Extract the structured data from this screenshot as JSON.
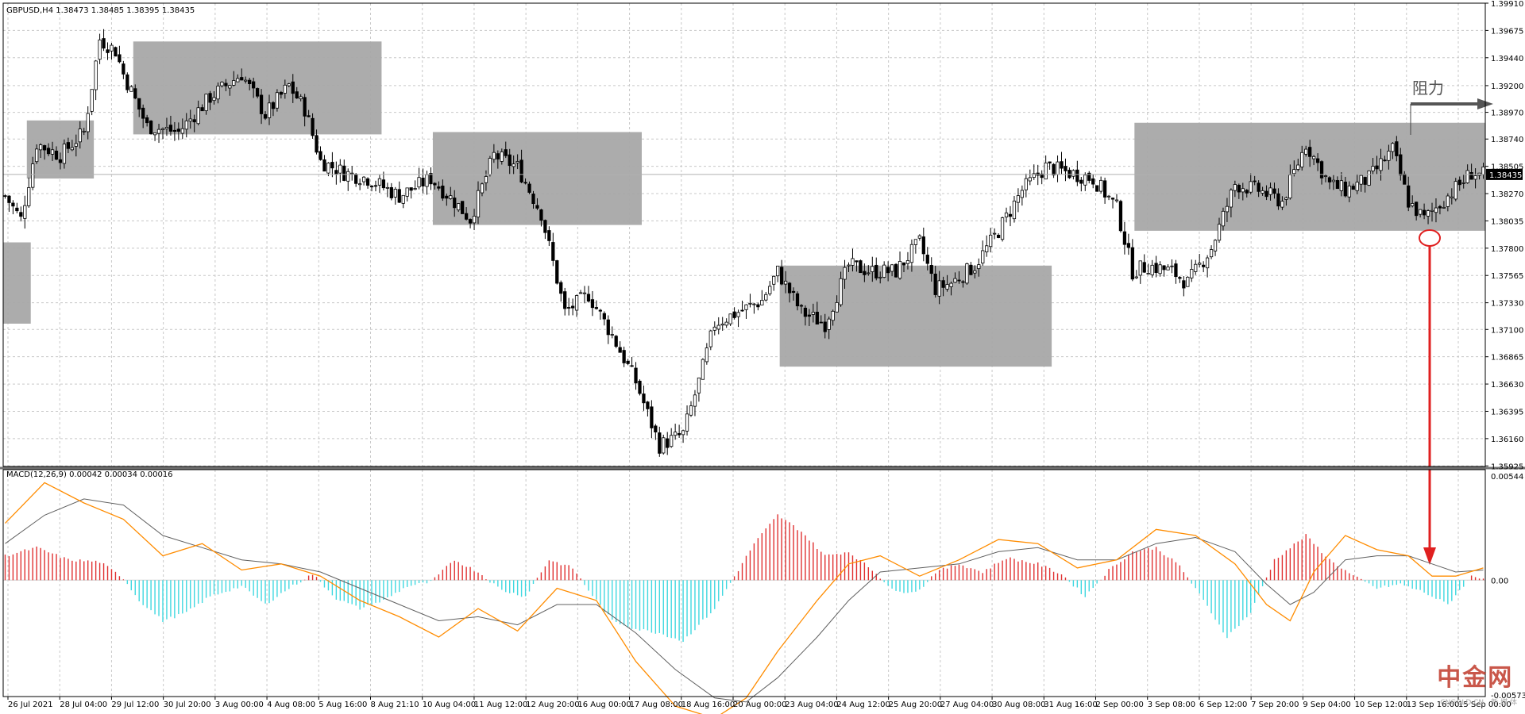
{
  "chart_data": {
    "type": "candlestick",
    "symbol_header": "GBPUSD,H4  1.38473 1.38485 1.38395 1.38435",
    "current_price_label": "1.38435",
    "resistance_label": "阻力",
    "price_axis": {
      "ylim": [
        1.3592,
        1.3991
      ],
      "ticks": [
        "1.39910",
        "1.39675",
        "1.39440",
        "1.39200",
        "1.38970",
        "1.38740",
        "1.38505",
        "1.38270",
        "1.38035",
        "1.37800",
        "1.37565",
        "1.37330",
        "1.37100",
        "1.36865",
        "1.36630",
        "1.36395",
        "1.36160",
        "1.35925"
      ]
    },
    "time_axis": {
      "labels": [
        "26 Jul 2021",
        "28 Jul 04:00",
        "29 Jul 12:00",
        "30 Jul 20:00",
        "3 Aug 00:00",
        "4 Aug 08:00",
        "5 Aug 16:00",
        "8 Aug 21:10",
        "10 Aug 04:00",
        "11 Aug 12:00",
        "12 Aug 20:00",
        "16 Aug 00:00",
        "17 Aug 08:00",
        "18 Aug 16:00",
        "20 Aug 00:00",
        "23 Aug 04:00",
        "24 Aug 12:00",
        "25 Aug 20:00",
        "27 Aug 04:00",
        "30 Aug 08:00",
        "31 Aug 16:00",
        "2 Sep 00:00",
        "3 Sep 08:00",
        "6 Sep 12:00",
        "7 Sep 20:00",
        "9 Sep 04:00",
        "10 Sep 12:00",
        "13 Sep 16:00",
        "15 Sep 00:00"
      ]
    },
    "close_path": [
      [
        0,
        1.3825
      ],
      [
        4,
        1.3805
      ],
      [
        8,
        1.387
      ],
      [
        14,
        1.386
      ],
      [
        20,
        1.388
      ],
      [
        24,
        1.396
      ],
      [
        28,
        1.395
      ],
      [
        30,
        1.393
      ],
      [
        36,
        1.3885
      ],
      [
        44,
        1.388
      ],
      [
        52,
        1.391
      ],
      [
        60,
        1.393
      ],
      [
        66,
        1.3895
      ],
      [
        72,
        1.392
      ],
      [
        76,
        1.39
      ],
      [
        80,
        1.3855
      ],
      [
        86,
        1.3845
      ],
      [
        92,
        1.384
      ],
      [
        100,
        1.3825
      ],
      [
        108,
        1.384
      ],
      [
        114,
        1.382
      ],
      [
        118,
        1.3805
      ],
      [
        124,
        1.386
      ],
      [
        130,
        1.385
      ],
      [
        136,
        1.381
      ],
      [
        142,
        1.3725
      ],
      [
        148,
        1.374
      ],
      [
        154,
        1.3705
      ],
      [
        160,
        1.3665
      ],
      [
        166,
        1.361
      ],
      [
        172,
        1.362
      ],
      [
        176,
        1.3665
      ],
      [
        180,
        1.3715
      ],
      [
        186,
        1.3725
      ],
      [
        192,
        1.3735
      ],
      [
        196,
        1.376
      ],
      [
        202,
        1.3725
      ],
      [
        208,
        1.3715
      ],
      [
        214,
        1.3765
      ],
      [
        220,
        1.376
      ],
      [
        226,
        1.376
      ],
      [
        232,
        1.3785
      ],
      [
        236,
        1.3745
      ],
      [
        240,
        1.375
      ],
      [
        246,
        1.3765
      ],
      [
        252,
        1.3795
      ],
      [
        258,
        1.383
      ],
      [
        264,
        1.385
      ],
      [
        270,
        1.3845
      ],
      [
        276,
        1.384
      ],
      [
        282,
        1.3815
      ],
      [
        286,
        1.376
      ],
      [
        290,
        1.3765
      ],
      [
        296,
        1.376
      ],
      [
        300,
        1.375
      ],
      [
        306,
        1.378
      ],
      [
        312,
        1.3835
      ],
      [
        318,
        1.383
      ],
      [
        324,
        1.382
      ],
      [
        330,
        1.387
      ],
      [
        336,
        1.3835
      ],
      [
        340,
        1.383
      ],
      [
        346,
        1.384
      ],
      [
        352,
        1.3865
      ],
      [
        356,
        1.382
      ],
      [
        360,
        1.3805
      ],
      [
        366,
        1.3825
      ],
      [
        372,
        1.3845
      ],
      [
        375,
        1.3843
      ]
    ],
    "range_boxes": [
      {
        "from_candle": 0,
        "to_candle": 6,
        "high": 1.3785,
        "low": 1.3715
      },
      {
        "from_candle": 6,
        "to_candle": 22,
        "high": 1.389,
        "low": 1.384
      },
      {
        "from_candle": 33,
        "to_candle": 95,
        "high": 1.3958,
        "low": 1.3878
      },
      {
        "from_candle": 109,
        "to_candle": 161,
        "high": 1.388,
        "low": 1.38
      },
      {
        "from_candle": 197,
        "to_candle": 265,
        "high": 1.3765,
        "low": 1.3678
      },
      {
        "from_candle": 287,
        "to_candle": 375,
        "high": 1.3888,
        "low": 1.3795
      }
    ],
    "macd": {
      "header": "MACD(12,26,9) 0.00042 0.00034 0.00016",
      "ylim": [
        -0.00573,
        0.00544
      ],
      "ticks": [
        "0.00544",
        "0.00",
        "-0.00573"
      ],
      "histogram_path": [
        [
          0,
          0.0012
        ],
        [
          8,
          0.0016
        ],
        [
          16,
          0.001
        ],
        [
          24,
          0.0009
        ],
        [
          30,
          0.0001
        ],
        [
          34,
          -0.001
        ],
        [
          40,
          -0.002
        ],
        [
          46,
          -0.0016
        ],
        [
          52,
          -0.0008
        ],
        [
          60,
          -0.0003
        ],
        [
          66,
          -0.0012
        ],
        [
          72,
          -0.0004
        ],
        [
          78,
          0.0003
        ],
        [
          84,
          -0.0009
        ],
        [
          90,
          -0.0014
        ],
        [
          96,
          -0.001
        ],
        [
          102,
          -0.0003
        ],
        [
          108,
          -0.0001
        ],
        [
          114,
          0.001
        ],
        [
          120,
          0.0004
        ],
        [
          126,
          -0.0005
        ],
        [
          132,
          -0.0008
        ],
        [
          138,
          0.001
        ],
        [
          144,
          0.0006
        ],
        [
          148,
          -0.0005
        ],
        [
          154,
          -0.002
        ],
        [
          160,
          -0.0024
        ],
        [
          166,
          -0.0026
        ],
        [
          172,
          -0.003
        ],
        [
          180,
          -0.0014
        ],
        [
          186,
          0.0005
        ],
        [
          190,
          0.0018
        ],
        [
          196,
          0.0032
        ],
        [
          202,
          0.0024
        ],
        [
          208,
          0.0012
        ],
        [
          214,
          0.0014
        ],
        [
          220,
          0.0005
        ],
        [
          226,
          -0.0006
        ],
        [
          232,
          -0.0005
        ],
        [
          236,
          0.0004
        ],
        [
          242,
          0.0008
        ],
        [
          248,
          0.0004
        ],
        [
          254,
          0.0011
        ],
        [
          262,
          0.0008
        ],
        [
          268,
          0.0003
        ],
        [
          274,
          -0.0008
        ],
        [
          280,
          0.0005
        ],
        [
          286,
          0.0014
        ],
        [
          292,
          0.0016
        ],
        [
          298,
          0.0007
        ],
        [
          304,
          -0.001
        ],
        [
          310,
          -0.0028
        ],
        [
          316,
          -0.0016
        ],
        [
          322,
          0.001
        ],
        [
          330,
          0.0022
        ],
        [
          336,
          0.001
        ],
        [
          342,
          0.0002
        ],
        [
          348,
          -0.0004
        ],
        [
          354,
          -0.0002
        ],
        [
          360,
          -0.0006
        ],
        [
          366,
          -0.0012
        ],
        [
          372,
          0.0002
        ],
        [
          375,
          0.0001
        ]
      ],
      "macd_path": [
        [
          0,
          0.0028
        ],
        [
          10,
          0.0048
        ],
        [
          20,
          0.0038
        ],
        [
          30,
          0.003
        ],
        [
          40,
          0.0012
        ],
        [
          50,
          0.0018
        ],
        [
          60,
          0.0005
        ],
        [
          70,
          0.0008
        ],
        [
          80,
          0.0002
        ],
        [
          90,
          -0.001
        ],
        [
          100,
          -0.0018
        ],
        [
          110,
          -0.0028
        ],
        [
          120,
          -0.0014
        ],
        [
          130,
          -0.0025
        ],
        [
          140,
          -0.0004
        ],
        [
          150,
          -0.001
        ],
        [
          160,
          -0.004
        ],
        [
          170,
          -0.0062
        ],
        [
          180,
          -0.0068
        ],
        [
          188,
          -0.0058
        ],
        [
          196,
          -0.0035
        ],
        [
          206,
          -0.001
        ],
        [
          214,
          0.0008
        ],
        [
          222,
          0.0012
        ],
        [
          232,
          0.0002
        ],
        [
          242,
          0.001
        ],
        [
          252,
          0.002
        ],
        [
          262,
          0.0018
        ],
        [
          272,
          0.0006
        ],
        [
          282,
          0.001
        ],
        [
          292,
          0.0025
        ],
        [
          302,
          0.0022
        ],
        [
          312,
          0.0008
        ],
        [
          320,
          -0.0012
        ],
        [
          326,
          -0.002
        ],
        [
          332,
          0.0004
        ],
        [
          340,
          0.0022
        ],
        [
          348,
          0.0015
        ],
        [
          356,
          0.0012
        ],
        [
          362,
          0.0002
        ],
        [
          368,
          0.0002
        ],
        [
          375,
          0.0006
        ]
      ],
      "signal_path": [
        [
          0,
          0.0018
        ],
        [
          10,
          0.0032
        ],
        [
          20,
          0.004
        ],
        [
          30,
          0.0037
        ],
        [
          40,
          0.0022
        ],
        [
          50,
          0.0016
        ],
        [
          60,
          0.001
        ],
        [
          70,
          0.0008
        ],
        [
          80,
          0.0004
        ],
        [
          90,
          -0.0004
        ],
        [
          100,
          -0.0012
        ],
        [
          110,
          -0.002
        ],
        [
          120,
          -0.0018
        ],
        [
          130,
          -0.0022
        ],
        [
          140,
          -0.0012
        ],
        [
          150,
          -0.0012
        ],
        [
          160,
          -0.0026
        ],
        [
          170,
          -0.0044
        ],
        [
          180,
          -0.0058
        ],
        [
          188,
          -0.006
        ],
        [
          196,
          -0.0048
        ],
        [
          206,
          -0.0028
        ],
        [
          214,
          -0.001
        ],
        [
          222,
          0.0004
        ],
        [
          232,
          0.0006
        ],
        [
          242,
          0.0008
        ],
        [
          252,
          0.0014
        ],
        [
          262,
          0.0016
        ],
        [
          272,
          0.001
        ],
        [
          282,
          0.001
        ],
        [
          292,
          0.0018
        ],
        [
          302,
          0.0021
        ],
        [
          312,
          0.0014
        ],
        [
          320,
          -0.0002
        ],
        [
          326,
          -0.0012
        ],
        [
          332,
          -0.0006
        ],
        [
          340,
          0.001
        ],
        [
          348,
          0.0012
        ],
        [
          356,
          0.0012
        ],
        [
          362,
          0.0008
        ],
        [
          368,
          0.0004
        ],
        [
          375,
          0.0005
        ]
      ],
      "colors": {
        "hist_up": "#e03030",
        "hist_down": "#40d8e0",
        "macd": "#ff8c00",
        "signal": "#606060"
      }
    },
    "colors": {
      "box": "#a8a8a8",
      "candle": "#000000",
      "grid": "#c8c8c8",
      "resistance_arrow": "#555555",
      "support_marker": "#e02020"
    }
  },
  "watermark": {
    "brand": "中金网",
    "site": "CNGOLD.CN",
    "sub": "新 媒 体"
  }
}
